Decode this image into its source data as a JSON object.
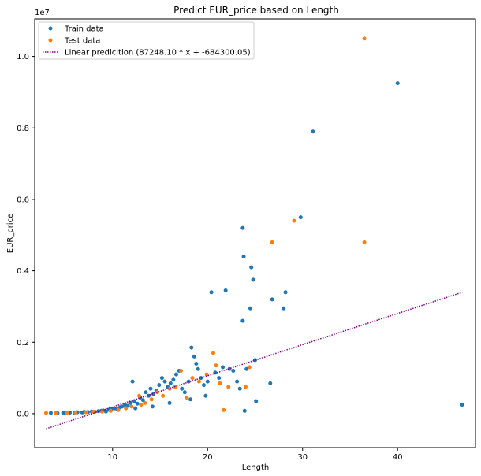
{
  "chart_data": {
    "type": "scatter",
    "title": "Predict EUR_price based on Length",
    "xlabel": "Length",
    "ylabel": "EUR_price",
    "xlim": [
      1.8,
      48.2
    ],
    "ylim": [
      -950000,
      11050000
    ],
    "x_ticks": [
      10,
      20,
      30,
      40
    ],
    "y_ticks": [
      0,
      2000000,
      4000000,
      6000000,
      8000000,
      10000000
    ],
    "y_tick_labels": [
      "0.0",
      "0.2",
      "0.4",
      "0.6",
      "0.8",
      "1.0"
    ],
    "y_offset_label": "1e7",
    "x_tick_labels": [
      "10",
      "20",
      "30",
      "40"
    ],
    "legend_position": "upper-left",
    "series": [
      {
        "name": "Train data",
        "kind": "points",
        "color": "#1f77b4",
        "points": [
          [
            3.5,
            20000
          ],
          [
            4.2,
            15000
          ],
          [
            4.8,
            25000
          ],
          [
            5.1,
            20000
          ],
          [
            5.5,
            30000
          ],
          [
            6.0,
            25000
          ],
          [
            6.3,
            40000
          ],
          [
            6.8,
            35000
          ],
          [
            7.0,
            50000
          ],
          [
            7.4,
            45000
          ],
          [
            7.8,
            60000
          ],
          [
            8.1,
            55000
          ],
          [
            8.5,
            70000
          ],
          [
            8.8,
            80000
          ],
          [
            9.0,
            90000
          ],
          [
            9.3,
            60000
          ],
          [
            9.6,
            110000
          ],
          [
            9.9,
            130000
          ],
          [
            10.2,
            150000
          ],
          [
            10.5,
            120000
          ],
          [
            10.8,
            180000
          ],
          [
            11.0,
            200000
          ],
          [
            11.3,
            250000
          ],
          [
            11.6,
            220000
          ],
          [
            11.9,
            300000
          ],
          [
            12.1,
            900000
          ],
          [
            12.3,
            350000
          ],
          [
            12.6,
            280000
          ],
          [
            12.9,
            450000
          ],
          [
            13.2,
            380000
          ],
          [
            13.5,
            600000
          ],
          [
            13.8,
            500000
          ],
          [
            14.0,
            700000
          ],
          [
            14.3,
            550000
          ],
          [
            14.6,
            650000
          ],
          [
            14.9,
            800000
          ],
          [
            15.2,
            1000000
          ],
          [
            15.5,
            900000
          ],
          [
            15.8,
            750000
          ],
          [
            16.1,
            850000
          ],
          [
            16.4,
            950000
          ],
          [
            16.7,
            1100000
          ],
          [
            17.0,
            1200000
          ],
          [
            17.3,
            700000
          ],
          [
            17.6,
            600000
          ],
          [
            18.0,
            900000
          ],
          [
            18.3,
            1850000
          ],
          [
            18.6,
            1600000
          ],
          [
            18.8,
            1400000
          ],
          [
            19.0,
            1250000
          ],
          [
            19.3,
            1000000
          ],
          [
            19.6,
            800000
          ],
          [
            20.0,
            900000
          ],
          [
            20.4,
            3400000
          ],
          [
            20.8,
            1150000
          ],
          [
            21.2,
            1000000
          ],
          [
            21.6,
            1300000
          ],
          [
            21.9,
            3450000
          ],
          [
            22.3,
            1250000
          ],
          [
            22.7,
            1200000
          ],
          [
            23.1,
            900000
          ],
          [
            23.4,
            700000
          ],
          [
            23.7,
            5200000
          ],
          [
            23.8,
            4400000
          ],
          [
            23.7,
            2600000
          ],
          [
            24.1,
            1250000
          ],
          [
            24.5,
            2950000
          ],
          [
            24.6,
            4100000
          ],
          [
            24.8,
            3750000
          ],
          [
            25.0,
            1500000
          ],
          [
            25.1,
            350000
          ],
          [
            26.6,
            850000
          ],
          [
            26.8,
            3200000
          ],
          [
            28.0,
            2950000
          ],
          [
            28.2,
            3400000
          ],
          [
            29.8,
            5500000
          ],
          [
            31.1,
            7900000
          ],
          [
            40.0,
            9250000
          ],
          [
            46.8,
            250000
          ],
          [
            23.9,
            80000
          ],
          [
            18.2,
            400000
          ],
          [
            16.0,
            300000
          ],
          [
            14.2,
            200000
          ],
          [
            12.4,
            150000
          ],
          [
            19.8,
            500000
          ]
        ]
      },
      {
        "name": "Test data",
        "kind": "points",
        "color": "#ff7f0e",
        "points": [
          [
            3.0,
            20000
          ],
          [
            4.0,
            15000
          ],
          [
            5.2,
            25000
          ],
          [
            6.1,
            30000
          ],
          [
            7.2,
            40000
          ],
          [
            8.0,
            50000
          ],
          [
            8.9,
            60000
          ],
          [
            9.8,
            80000
          ],
          [
            10.6,
            100000
          ],
          [
            11.4,
            150000
          ],
          [
            12.0,
            200000
          ],
          [
            12.8,
            500000
          ],
          [
            13.4,
            300000
          ],
          [
            14.1,
            400000
          ],
          [
            14.7,
            600000
          ],
          [
            15.3,
            500000
          ],
          [
            16.0,
            700000
          ],
          [
            16.6,
            750000
          ],
          [
            17.2,
            1200000
          ],
          [
            17.8,
            450000
          ],
          [
            18.4,
            1000000
          ],
          [
            19.1,
            900000
          ],
          [
            19.9,
            1100000
          ],
          [
            20.6,
            1700000
          ],
          [
            20.9,
            1350000
          ],
          [
            21.3,
            850000
          ],
          [
            21.7,
            100000
          ],
          [
            22.2,
            750000
          ],
          [
            24.0,
            750000
          ],
          [
            24.4,
            1300000
          ],
          [
            26.8,
            4800000
          ],
          [
            29.1,
            5400000
          ],
          [
            36.5,
            10500000
          ],
          [
            36.5,
            4800000
          ],
          [
            13.0,
            250000
          ]
        ]
      },
      {
        "name": "Linear predicition (87248.10 * x + -684300.05)",
        "kind": "line",
        "color": "#800080",
        "slope": 87248.1,
        "intercept": -684300.05,
        "x_range": [
          3.0,
          46.8
        ]
      }
    ]
  }
}
